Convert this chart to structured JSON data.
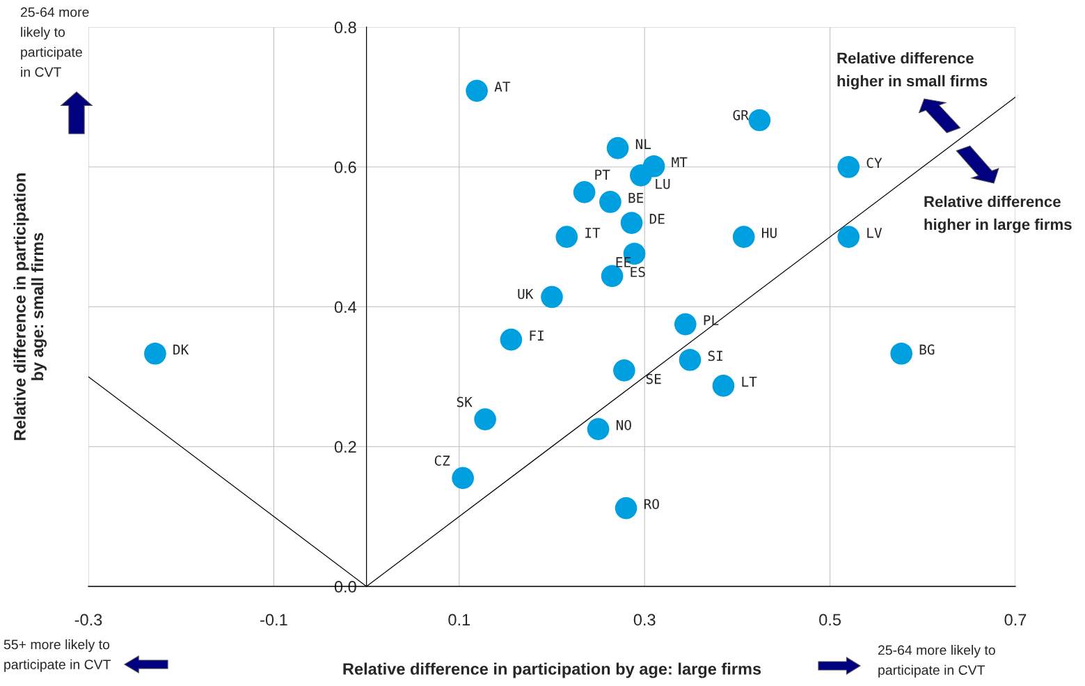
{
  "chart_data": {
    "type": "scatter",
    "xlabel": "Relative difference in participation by age: large firms",
    "ylabel": "Relative difference in participation\nby age: small firms",
    "xlim": [
      -0.3,
      0.7
    ],
    "ylim": [
      0,
      0.8
    ],
    "xticks": [
      -0.3,
      -0.1,
      0.1,
      0.3,
      0.5,
      0.7
    ],
    "yticks": [
      {
        "value": 0,
        "label": "0.0"
      },
      0.2,
      0.4,
      0.6,
      0.8
    ],
    "grid": true,
    "legend": false,
    "marker": "circle",
    "series": [
      {
        "color": "#00a0e0",
        "x": [
          0.119,
          0.424,
          0.271,
          0.31,
          0.296,
          0.235,
          0.263,
          0.286,
          0.216,
          0.289,
          0.265,
          0.2,
          0.52,
          0.52,
          0.407,
          0.344,
          0.349,
          0.385,
          0.577,
          0.156,
          0.278,
          -0.228,
          0.128,
          0.25,
          0.104,
          0.28
        ],
        "values": [
          0.709,
          0.667,
          0.627,
          0.601,
          0.588,
          0.564,
          0.55,
          0.52,
          0.5,
          0.476,
          0.444,
          0.414,
          0.6,
          0.5,
          0.5,
          0.375,
          0.324,
          0.287,
          0.333,
          0.353,
          0.309,
          0.333,
          0.239,
          0.225,
          0.155,
          0.112
        ]
      },
      {
        "type": "line",
        "marker": "none",
        "color": "#000000",
        "x": [
          0,
          0.7
        ],
        "values": [
          0,
          0.7
        ]
      },
      {
        "type": "line",
        "marker": "none",
        "color": "#000000",
        "x": [
          -0.3,
          0
        ],
        "values": [
          0.3,
          0
        ]
      }
    ],
    "annotations": [
      {
        "text": "AT",
        "x": 0.119,
        "y": 0.709
      },
      {
        "text": "GR",
        "x": 0.424,
        "y": 0.667
      },
      {
        "text": "NL",
        "x": 0.271,
        "y": 0.627
      },
      {
        "text": "MT",
        "x": 0.31,
        "y": 0.601
      },
      {
        "text": "LU",
        "x": 0.296,
        "y": 0.588
      },
      {
        "text": "PT",
        "x": 0.235,
        "y": 0.564
      },
      {
        "text": "BE",
        "x": 0.263,
        "y": 0.55
      },
      {
        "text": "DE",
        "x": 0.286,
        "y": 0.52
      },
      {
        "text": "IT",
        "x": 0.216,
        "y": 0.5
      },
      {
        "text": "EE",
        "x": 0.289,
        "y": 0.476
      },
      {
        "text": "ES",
        "x": 0.265,
        "y": 0.444
      },
      {
        "text": "UK",
        "x": 0.2,
        "y": 0.414
      },
      {
        "text": "CY",
        "x": 0.52,
        "y": 0.6
      },
      {
        "text": "LV",
        "x": 0.52,
        "y": 0.5
      },
      {
        "text": "HU",
        "x": 0.407,
        "y": 0.5
      },
      {
        "text": "PL",
        "x": 0.344,
        "y": 0.375
      },
      {
        "text": "SI",
        "x": 0.349,
        "y": 0.324
      },
      {
        "text": "LT",
        "x": 0.385,
        "y": 0.287
      },
      {
        "text": "BG",
        "x": 0.577,
        "y": 0.333
      },
      {
        "text": "FI",
        "x": 0.156,
        "y": 0.353
      },
      {
        "text": "SE",
        "x": 0.278,
        "y": 0.309
      },
      {
        "text": "DK",
        "x": -0.228,
        "y": 0.333
      },
      {
        "text": "SK",
        "x": 0.128,
        "y": 0.239
      },
      {
        "text": "NO",
        "x": 0.25,
        "y": 0.225
      },
      {
        "text": "CZ",
        "x": 0.104,
        "y": 0.155
      },
      {
        "text": "RO",
        "x": 0.28,
        "y": 0.112
      },
      "25-64 more\nlikely to\nparticipate\nin CVT",
      "55+ more likely to\nparticipate in CVT",
      "25-64 more likely to\nparticipate in CVT",
      "Relative difference\nhigher in small firms",
      "Relative difference\nhigher in large firms"
    ]
  }
}
